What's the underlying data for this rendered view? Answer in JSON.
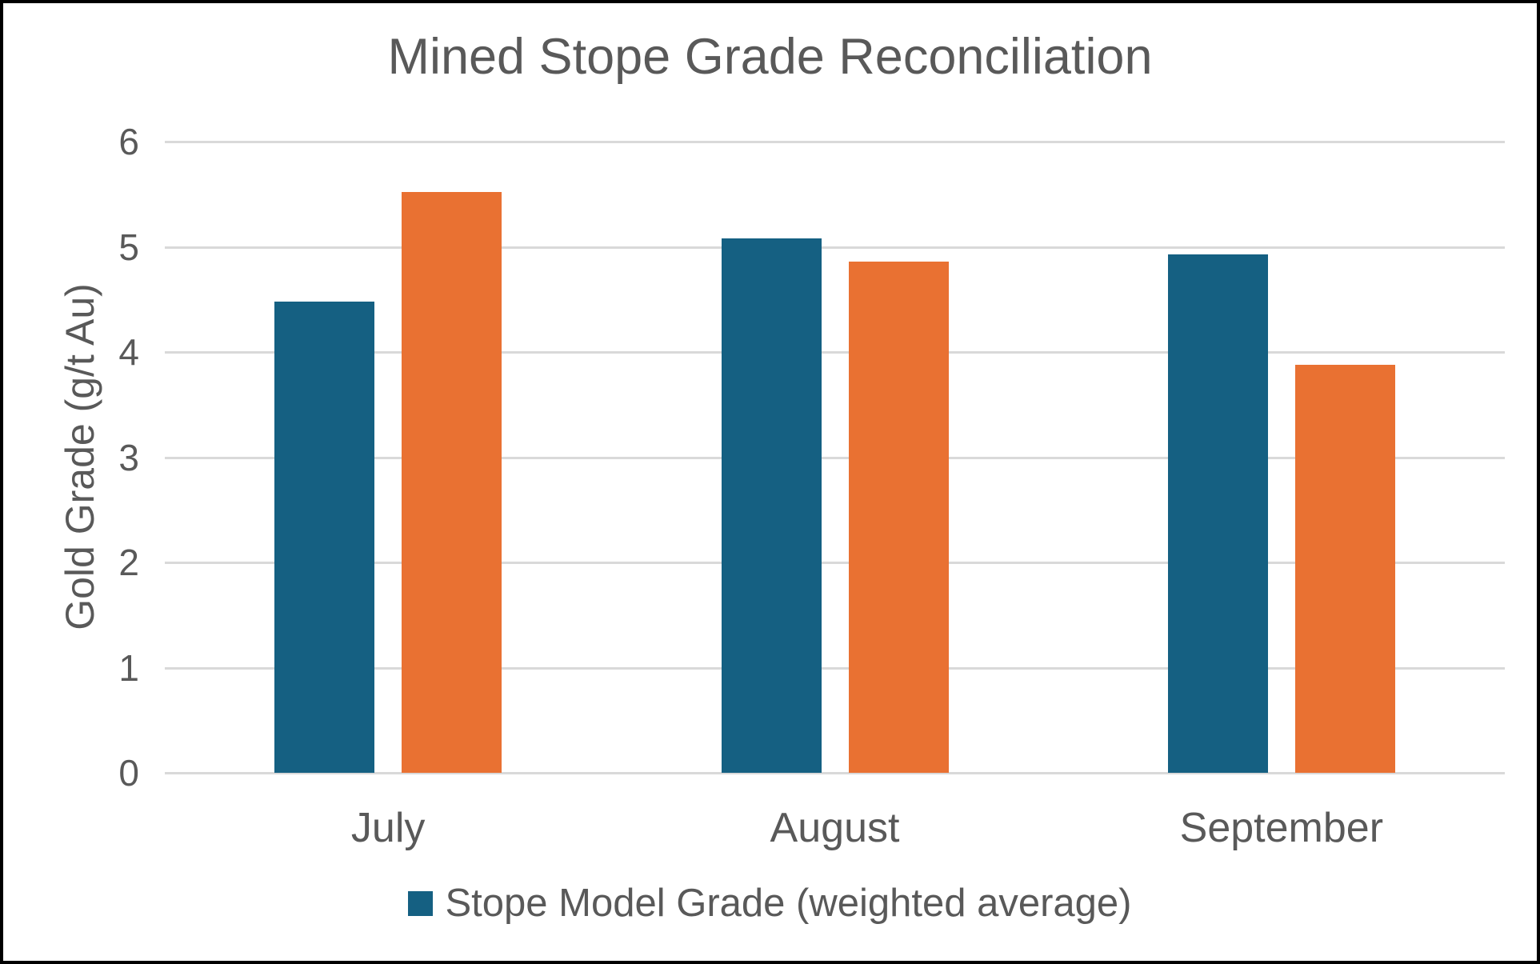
{
  "chart_data": {
    "type": "bar",
    "title": "Mined Stope Grade Reconciliation",
    "ylabel": "Gold Grade (g/t Au)",
    "xlabel": "",
    "categories": [
      "July",
      "August",
      "September"
    ],
    "series": [
      {
        "name": "Stope Model Grade (weighted average)",
        "color": "#156082",
        "values": [
          4.48,
          5.08,
          4.93
        ],
        "in_legend": true
      },
      {
        "name": "",
        "color": "#E97132",
        "values": [
          5.52,
          4.86,
          3.88
        ],
        "in_legend": false
      }
    ],
    "ylim": [
      0,
      6
    ],
    "yticks": [
      0,
      1,
      2,
      3,
      4,
      5,
      6
    ],
    "grid": true,
    "legend_position": "bottom-center",
    "colors": {
      "text": "#595959",
      "gridline": "#D9D9D9",
      "background": "#FFFFFF",
      "frame_border": "#000000"
    }
  }
}
